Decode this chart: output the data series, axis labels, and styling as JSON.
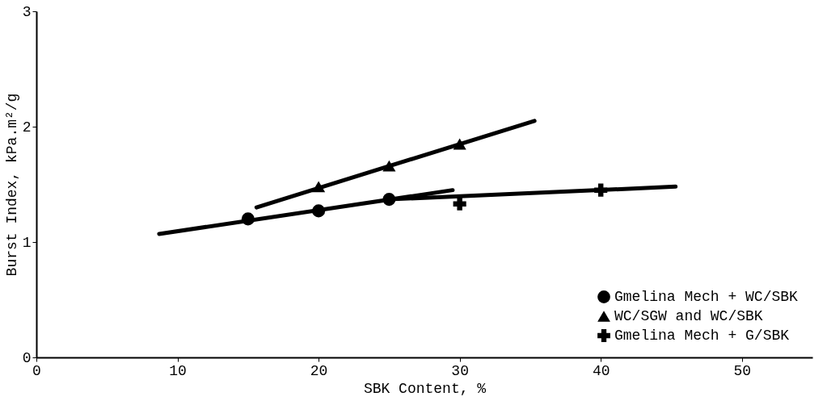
{
  "chart_data": {
    "type": "scatter",
    "xlabel": "SBK Content, %",
    "ylabel": "Burst Index, kPa.m²/g",
    "xlim": [
      0,
      55
    ],
    "xticks": [
      0,
      10,
      20,
      30,
      40,
      50
    ],
    "ylim": [
      0,
      3
    ],
    "yticks": [
      0,
      1,
      2,
      3
    ],
    "grid": false,
    "legend": "bottom right",
    "series": [
      {
        "name": "Gmelina Mech + WC/SBK",
        "marker": "circle",
        "color": "#000000",
        "x": [
          15,
          20,
          25
        ],
        "values": [
          1.2,
          1.27,
          1.37
        ]
      },
      {
        "name": "WC/SGW and WC/SBK",
        "marker": "triangle",
        "color": "#000000",
        "x": [
          20,
          25,
          30
        ],
        "values": [
          1.48,
          1.66,
          1.85
        ]
      },
      {
        "name": "Gmelina Mech + G/SBK",
        "marker": "cross",
        "color": "#000000",
        "x": [
          30,
          40
        ],
        "values": [
          1.33,
          1.45
        ]
      },
      {
        "type": "line",
        "color": "#000000",
        "x": [
          8.7,
          29.5
        ],
        "values": [
          1.07,
          1.45
        ]
      },
      {
        "type": "line",
        "color": "#000000",
        "x": [
          15.6,
          35.3
        ],
        "values": [
          1.3,
          2.05
        ]
      },
      {
        "type": "line",
        "color": "#000000",
        "x": [
          25,
          45.3
        ],
        "values": [
          1.37,
          1.48
        ]
      }
    ]
  }
}
